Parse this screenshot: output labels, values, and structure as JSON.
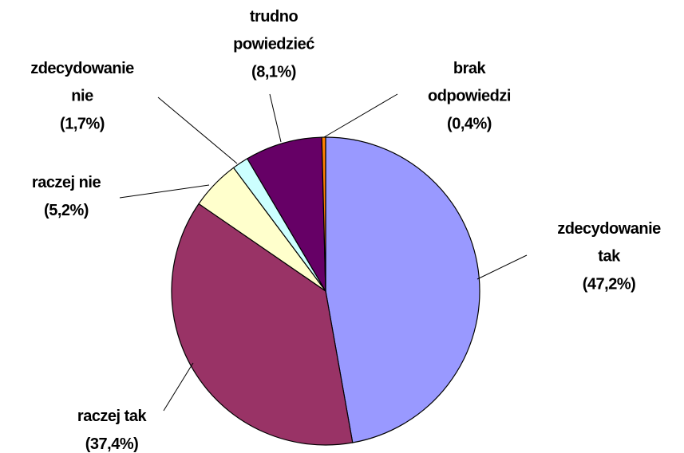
{
  "chart_data": {
    "type": "pie",
    "categories": [
      "zdecydowanie tak",
      "raczej tak",
      "raczej nie",
      "zdecydowanie nie",
      "trudno powiedzieć",
      "brak odpowiedzi"
    ],
    "values": [
      47.2,
      37.4,
      5.2,
      1.7,
      8.1,
      0.4
    ],
    "value_labels": [
      "(47,2%)",
      "(37,4%)",
      "(5,2%)",
      "(1,7%)",
      "(8,1%)",
      "(0,4%)"
    ],
    "colors": [
      "#9999ff",
      "#993366",
      "#ffffcc",
      "#ccffff",
      "#660066",
      "#ff8000"
    ]
  }
}
